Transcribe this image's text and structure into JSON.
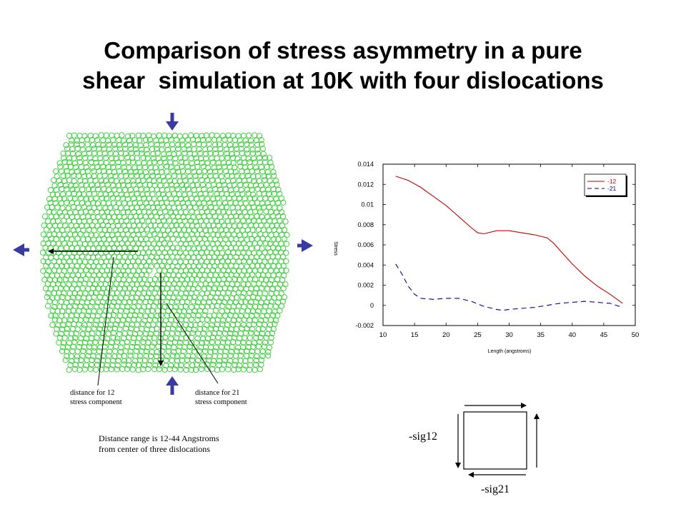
{
  "slide": {
    "title_line1": "Comparison of stress asymmetry in a pure",
    "title_line2": "shear  simulation at 10K with four dislocations"
  },
  "annotations": {
    "dist12_line1": "distance for 12",
    "dist12_line2": "stress component",
    "dist21_line1": "distance for 21",
    "dist21_line2": "stress component",
    "range_line1": "Distance range is 12-44 Angstroms",
    "range_line2": "from center of three dislocations"
  },
  "stress_box": {
    "top_label": "-sig12",
    "bottom_label": "-sig21"
  },
  "colors": {
    "atom_green": "#33cc33",
    "arrow_blue": "#3a3aa0",
    "series_12": "#cc0000",
    "series_21": "#00008b"
  },
  "chart_data": {
    "type": "line",
    "xlabel": "Length (angstroms)",
    "ylabel": "Stress",
    "xlim": [
      10,
      50
    ],
    "ylim": [
      -0.002,
      0.014
    ],
    "xticks": [
      10,
      15,
      20,
      25,
      30,
      35,
      40,
      45,
      50
    ],
    "yticks": [
      -0.002,
      0,
      0.002,
      0.004,
      0.006,
      0.008,
      0.01,
      0.012,
      0.014
    ],
    "ytick_labels": [
      "-0.002",
      "0",
      "0.002",
      "0.004",
      "0.006",
      "0.008",
      "0.01",
      "0.012",
      "0.014"
    ],
    "legend_position": "top-right",
    "series": [
      {
        "name": "-12",
        "style": "solid",
        "color": "#cc0000",
        "x": [
          12,
          14,
          16,
          18,
          20,
          22,
          24,
          25,
          26,
          28,
          30,
          32,
          34,
          36,
          37,
          38,
          40,
          42,
          44,
          46,
          48
        ],
        "y": [
          0.0128,
          0.0124,
          0.0117,
          0.0108,
          0.0099,
          0.0088,
          0.0077,
          0.0072,
          0.0071,
          0.0074,
          0.0074,
          0.0072,
          0.007,
          0.0067,
          0.0062,
          0.0055,
          0.0041,
          0.0029,
          0.0019,
          0.0011,
          0.0002
        ]
      },
      {
        "name": "-21",
        "style": "dashed",
        "color": "#00008b",
        "x": [
          12,
          13,
          14,
          15,
          16,
          18,
          20,
          22,
          24,
          26,
          28,
          29,
          30,
          32,
          34,
          36,
          38,
          40,
          42,
          44,
          46,
          48
        ],
        "y": [
          0.0041,
          0.0031,
          0.0019,
          0.0011,
          0.0007,
          0.0006,
          0.0007,
          0.0007,
          0.0004,
          -0.0001,
          -0.0004,
          -0.0005,
          -0.0004,
          -0.0003,
          -0.0002,
          0.0,
          0.0002,
          0.0003,
          0.0004,
          0.0003,
          0.0002,
          -0.0002
        ]
      }
    ]
  }
}
